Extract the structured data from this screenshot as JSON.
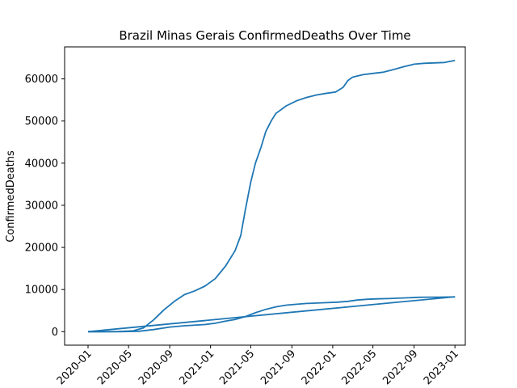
{
  "chart_data": {
    "type": "line",
    "title": "Brazil Minas Gerais ConfirmedDeaths Over Time",
    "xlabel": "",
    "ylabel": "ConfirmedDeaths",
    "x_ticks": [
      "2020-01",
      "2020-05",
      "2020-09",
      "2021-01",
      "2021-05",
      "2021-09",
      "2022-01",
      "2022-05",
      "2022-09",
      "2023-01"
    ],
    "y_ticks": [
      0,
      10000,
      20000,
      30000,
      40000,
      50000,
      60000
    ],
    "xlim": [
      "2019-10-23",
      "2023-02-01"
    ],
    "ylim": [
      -3200,
      67600
    ],
    "grid": false,
    "series": [
      {
        "name": "",
        "color": "#1f77b4",
        "points": [
          [
            "2020-01-01",
            0
          ],
          [
            "2020-02-15",
            0
          ],
          [
            "2020-04-01",
            50
          ],
          [
            "2020-05-15",
            200
          ],
          [
            "2020-06-15",
            900
          ],
          [
            "2020-07-15",
            2800
          ],
          [
            "2020-08-15",
            5200
          ],
          [
            "2020-09-15",
            7200
          ],
          [
            "2020-10-15",
            8800
          ],
          [
            "2020-11-15",
            9700
          ],
          [
            "2020-12-15",
            10800
          ],
          [
            "2021-01-15",
            12600
          ],
          [
            "2021-02-15",
            15600
          ],
          [
            "2021-03-15",
            19200
          ],
          [
            "2021-04-01",
            22800
          ],
          [
            "2021-04-15",
            29000
          ],
          [
            "2021-05-01",
            35500
          ],
          [
            "2021-05-15",
            40000
          ],
          [
            "2021-06-01",
            43800
          ],
          [
            "2021-06-15",
            47500
          ],
          [
            "2021-07-01",
            50000
          ],
          [
            "2021-07-15",
            51800
          ],
          [
            "2021-08-15",
            53600
          ],
          [
            "2021-09-15",
            54800
          ],
          [
            "2021-10-15",
            55600
          ],
          [
            "2021-11-15",
            56200
          ],
          [
            "2021-12-15",
            56600
          ],
          [
            "2022-01-10",
            56900
          ],
          [
            "2022-02-01",
            58000
          ],
          [
            "2022-02-15",
            59600
          ],
          [
            "2022-03-01",
            60400
          ],
          [
            "2022-04-01",
            61000
          ],
          [
            "2022-05-01",
            61300
          ],
          [
            "2022-06-01",
            61600
          ],
          [
            "2022-07-01",
            62200
          ],
          [
            "2022-08-01",
            62900
          ],
          [
            "2022-09-01",
            63500
          ],
          [
            "2022-10-01",
            63700
          ],
          [
            "2022-11-01",
            63800
          ],
          [
            "2022-12-01",
            63900
          ],
          [
            "2022-12-20",
            64200
          ],
          [
            "2023-01-01",
            64400
          ]
        ]
      },
      {
        "name": "",
        "color": "#1f77b4",
        "points": [
          [
            "2020-01-01",
            0
          ],
          [
            "2020-04-01",
            10
          ],
          [
            "2020-06-01",
            100
          ],
          [
            "2020-07-15",
            500
          ],
          [
            "2020-09-01",
            1100
          ],
          [
            "2020-10-15",
            1400
          ],
          [
            "2020-12-15",
            1700
          ],
          [
            "2021-01-15",
            2000
          ],
          [
            "2021-02-15",
            2500
          ],
          [
            "2021-03-15",
            2900
          ],
          [
            "2021-04-15",
            3600
          ],
          [
            "2021-05-15",
            4500
          ],
          [
            "2021-06-15",
            5300
          ],
          [
            "2021-07-15",
            5900
          ],
          [
            "2021-08-15",
            6300
          ],
          [
            "2021-09-15",
            6500
          ],
          [
            "2021-10-15",
            6700
          ],
          [
            "2021-11-15",
            6800
          ],
          [
            "2021-12-15",
            6900
          ],
          [
            "2022-01-15",
            7000
          ],
          [
            "2022-02-15",
            7200
          ],
          [
            "2022-03-15",
            7500
          ],
          [
            "2022-04-15",
            7700
          ],
          [
            "2022-05-15",
            7800
          ],
          [
            "2022-06-15",
            7850
          ],
          [
            "2022-07-15",
            7950
          ],
          [
            "2022-08-15",
            8050
          ],
          [
            "2022-09-15",
            8150
          ],
          [
            "2022-10-15",
            8200
          ],
          [
            "2022-11-15",
            8200
          ],
          [
            "2023-01-01",
            8250
          ]
        ]
      },
      {
        "name": "",
        "color": "#1f77b4",
        "points": [
          [
            "2020-01-01",
            0
          ],
          [
            "2023-01-01",
            8300
          ]
        ]
      }
    ]
  }
}
